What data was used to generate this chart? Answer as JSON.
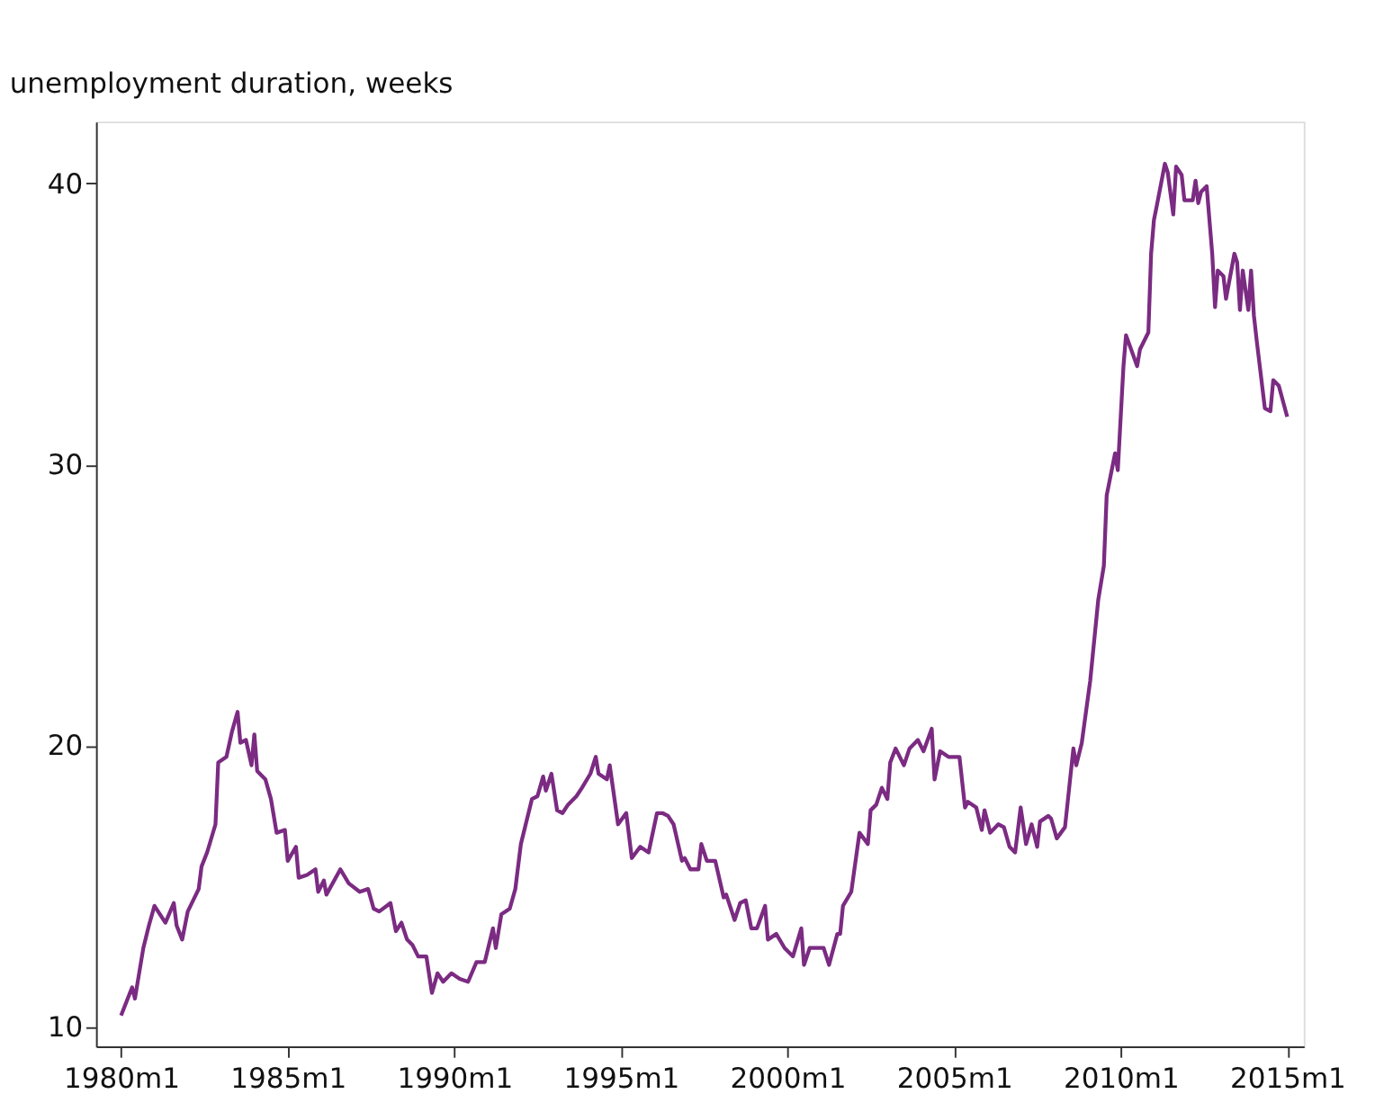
{
  "chart_data": {
    "type": "line",
    "ylabel": "unemployment duration, weeks",
    "xlim": [
      "1979-04",
      "2015-07"
    ],
    "ylim": [
      9.3,
      42.2
    ],
    "xticks": [
      {
        "value": "1980-01",
        "label": "1980m1"
      },
      {
        "value": "1985-01",
        "label": "1985m1"
      },
      {
        "value": "1990-01",
        "label": "1990m1"
      },
      {
        "value": "1995-01",
        "label": "1995m1"
      },
      {
        "value": "2000-01",
        "label": "2000m1"
      },
      {
        "value": "2005-01",
        "label": "2005m1"
      },
      {
        "value": "2010-01",
        "label": "2010m1"
      },
      {
        "value": "2015-01",
        "label": "2015m1"
      }
    ],
    "yticks": [
      10,
      20,
      30,
      40
    ],
    "grid": false,
    "marker": "none",
    "line_style": "solid",
    "series": [
      {
        "color": "#7b2b82",
        "x": [
          "1980-01",
          "1980-05",
          "1980-06",
          "1980-09",
          "1980-11",
          "1981-01",
          "1981-05",
          "1981-08",
          "1981-09",
          "1981-11",
          "1982-01",
          "1982-05",
          "1982-06",
          "1982-08",
          "1982-11",
          "1982-12",
          "1983-03",
          "1983-05",
          "1983-07",
          "1983-08",
          "1983-10",
          "1983-12",
          "1984-01",
          "1984-02",
          "1984-05",
          "1984-07",
          "1984-09",
          "1984-12",
          "1985-01",
          "1985-04",
          "1985-05",
          "1985-08",
          "1985-11",
          "1985-12",
          "1986-02",
          "1986-03",
          "1986-08",
          "1986-11",
          "1987-03",
          "1987-06",
          "1987-08",
          "1987-10",
          "1988-02",
          "1988-04",
          "1988-06",
          "1988-08",
          "1988-10",
          "1988-12",
          "1989-03",
          "1989-05",
          "1989-07",
          "1989-09",
          "1989-12",
          "1990-03",
          "1990-06",
          "1990-09",
          "1990-12",
          "1991-03",
          "1991-04",
          "1991-06",
          "1991-09",
          "1991-11",
          "1992-01",
          "1992-05",
          "1992-07",
          "1992-09",
          "1992-10",
          "1992-12",
          "1993-02",
          "1993-04",
          "1993-06",
          "1993-09",
          "1993-11",
          "1994-02",
          "1994-04",
          "1994-05",
          "1994-08",
          "1994-09",
          "1994-11",
          "1994-12",
          "1995-03",
          "1995-05",
          "1995-08",
          "1995-11",
          "1996-02",
          "1996-04",
          "1996-06",
          "1996-08",
          "1996-11",
          "1996-12",
          "1997-02",
          "1997-05",
          "1997-06",
          "1997-08",
          "1997-11",
          "1998-02",
          "1998-03",
          "1998-06",
          "1998-08",
          "1998-10",
          "1998-12",
          "1999-02",
          "1999-05",
          "1999-06",
          "1999-09",
          "1999-12",
          "2000-03",
          "2000-06",
          "2000-07",
          "2000-09",
          "2000-12",
          "2001-02",
          "2001-04",
          "2001-07",
          "2001-08",
          "2001-09",
          "2001-12",
          "2002-03",
          "2002-06",
          "2002-07",
          "2002-09",
          "2002-11",
          "2003-01",
          "2003-02",
          "2003-04",
          "2003-07",
          "2003-09",
          "2003-12",
          "2004-02",
          "2004-05",
          "2004-06",
          "2004-08",
          "2004-11",
          "2005-03",
          "2005-05",
          "2005-06",
          "2005-09",
          "2005-11",
          "2005-12",
          "2006-02",
          "2006-05",
          "2006-07",
          "2006-09",
          "2006-11",
          "2007-01",
          "2007-03",
          "2007-05",
          "2007-07",
          "2007-08",
          "2007-11",
          "2007-12",
          "2008-02",
          "2008-05",
          "2008-08",
          "2008-09",
          "2008-11",
          "2009-02",
          "2009-05",
          "2009-07",
          "2009-08",
          "2009-11",
          "2009-12",
          "2010-02",
          "2010-03",
          "2010-07",
          "2010-08",
          "2010-11",
          "2010-12",
          "2011-01",
          "2011-02",
          "2011-05",
          "2011-06",
          "2011-08",
          "2011-09",
          "2011-11",
          "2011-12",
          "2012-03",
          "2012-04",
          "2012-05",
          "2012-06",
          "2012-08",
          "2012-10",
          "2012-11",
          "2012-12",
          "2013-02",
          "2013-03",
          "2013-06",
          "2013-07",
          "2013-08",
          "2013-09",
          "2013-11",
          "2013-12",
          "2014-01",
          "2014-02",
          "2014-05",
          "2014-07",
          "2014-08",
          "2014-10",
          "2015-01"
        ],
        "values": [
          10.4,
          11.4,
          11.0,
          12.8,
          13.6,
          14.3,
          13.7,
          14.4,
          13.6,
          13.1,
          14.1,
          14.9,
          15.7,
          16.2,
          17.2,
          19.4,
          19.6,
          20.5,
          21.2,
          20.1,
          20.2,
          19.3,
          20.4,
          19.1,
          18.8,
          18.1,
          16.9,
          17.0,
          15.9,
          16.4,
          15.3,
          15.4,
          15.6,
          14.8,
          15.2,
          14.7,
          15.6,
          15.1,
          14.8,
          14.9,
          14.2,
          14.1,
          14.4,
          13.4,
          13.7,
          13.1,
          12.9,
          12.5,
          12.5,
          11.2,
          11.9,
          11.6,
          11.9,
          11.7,
          11.6,
          12.3,
          12.3,
          13.5,
          12.8,
          14.0,
          14.2,
          14.9,
          16.5,
          18.1,
          18.2,
          18.9,
          18.4,
          19.0,
          17.7,
          17.6,
          17.9,
          18.2,
          18.5,
          19.0,
          19.6,
          19.0,
          18.8,
          19.3,
          17.9,
          17.2,
          17.6,
          16.0,
          16.4,
          16.2,
          17.6,
          17.6,
          17.5,
          17.2,
          15.9,
          16.0,
          15.6,
          15.6,
          16.5,
          15.9,
          15.9,
          14.6,
          14.7,
          13.8,
          14.4,
          14.5,
          13.5,
          13.5,
          14.3,
          13.1,
          13.3,
          12.8,
          12.5,
          13.5,
          12.2,
          12.8,
          12.8,
          12.8,
          12.2,
          13.3,
          13.3,
          14.3,
          14.8,
          16.9,
          16.5,
          17.7,
          17.9,
          18.5,
          18.1,
          19.4,
          19.9,
          19.3,
          19.9,
          20.2,
          19.8,
          20.6,
          18.8,
          19.8,
          19.6,
          19.6,
          17.8,
          18.0,
          17.8,
          17.0,
          17.7,
          16.9,
          17.2,
          17.1,
          16.4,
          16.2,
          17.8,
          16.5,
          17.2,
          16.4,
          17.3,
          17.5,
          17.4,
          16.7,
          17.1,
          19.9,
          19.3,
          20.1,
          22.3,
          25.2,
          26.4,
          28.9,
          30.4,
          29.8,
          33.5,
          34.6,
          33.5,
          34.1,
          34.7,
          37.5,
          38.7,
          39.2,
          40.7,
          40.4,
          38.9,
          40.6,
          40.3,
          39.4,
          39.4,
          40.1,
          39.3,
          39.7,
          39.9,
          37.5,
          35.6,
          36.9,
          36.7,
          35.9,
          37.5,
          37.2,
          35.5,
          36.9,
          35.5,
          36.9,
          35.3,
          34.4,
          32.0,
          31.9,
          33.0,
          32.8,
          31.7
        ]
      }
    ]
  }
}
